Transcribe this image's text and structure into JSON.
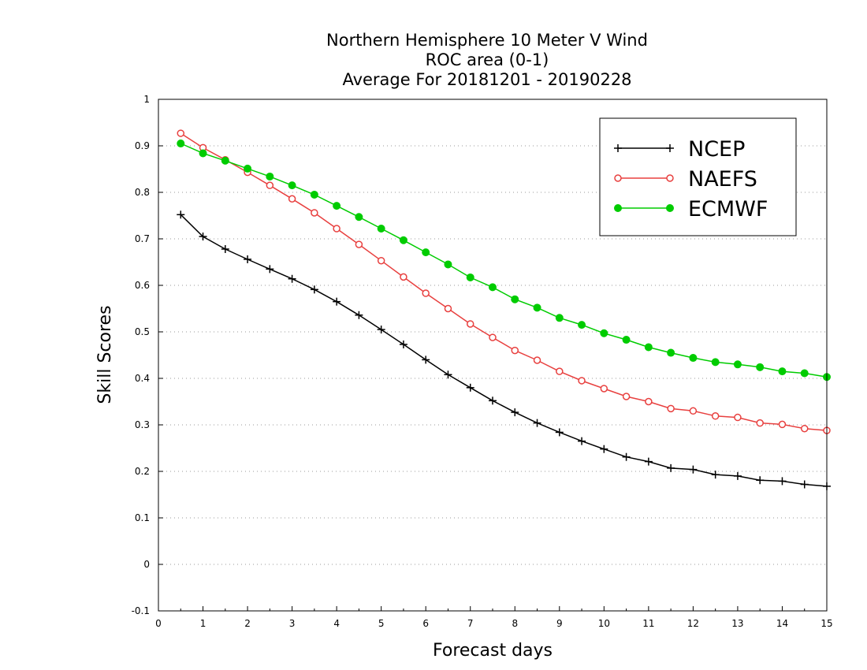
{
  "chart_data": {
    "type": "line",
    "title": [
      "Northern Hemisphere 10 Meter V Wind",
      "ROC area (0-1)",
      "Average For 20181201 - 20190228"
    ],
    "xlabel": "Forecast days",
    "ylabel": "Skill Scores",
    "xlim": [
      0,
      15
    ],
    "ylim": [
      -0.1,
      1
    ],
    "x_ticks": [
      "0",
      "1",
      "2",
      "3",
      "4",
      "5",
      "6",
      "7",
      "8",
      "9",
      "10",
      "11",
      "12",
      "13",
      "14",
      "15"
    ],
    "y_ticks": [
      "-0.1",
      "0",
      "0.1",
      "0.2",
      "0.3",
      "0.4",
      "0.5",
      "0.6",
      "0.7",
      "0.8",
      "0.9",
      "1"
    ],
    "grid": "horizontal dotted",
    "legend_position": "top-right",
    "x": [
      0.5,
      1,
      1.5,
      2,
      2.5,
      3,
      3.5,
      4,
      4.5,
      5,
      5.5,
      6,
      6.5,
      7,
      7.5,
      8,
      8.5,
      9,
      9.5,
      10,
      10.5,
      11,
      11.5,
      12,
      12.5,
      13,
      13.5,
      14,
      14.5,
      15
    ],
    "series": [
      {
        "name": "NCEP",
        "color": "#000000",
        "marker": "plus",
        "values": [
          0.752,
          0.705,
          0.678,
          0.656,
          0.635,
          0.614,
          0.591,
          0.565,
          0.536,
          0.505,
          0.473,
          0.44,
          0.408,
          0.38,
          0.352,
          0.327,
          0.304,
          0.284,
          0.265,
          0.248,
          0.231,
          0.221,
          0.207,
          0.204,
          0.193,
          0.19,
          0.181,
          0.179,
          0.172,
          0.168
        ]
      },
      {
        "name": "NAEFS",
        "color": "#e8403f",
        "marker": "open-circle",
        "values": [
          0.927,
          0.896,
          0.87,
          0.843,
          0.815,
          0.786,
          0.756,
          0.722,
          0.688,
          0.653,
          0.618,
          0.583,
          0.55,
          0.517,
          0.488,
          0.46,
          0.439,
          0.415,
          0.395,
          0.378,
          0.361,
          0.35,
          0.335,
          0.33,
          0.319,
          0.316,
          0.304,
          0.301,
          0.292,
          0.288
        ]
      },
      {
        "name": "ECMWF",
        "color": "#00cc00",
        "marker": "filled-circle",
        "values": [
          0.905,
          0.884,
          0.868,
          0.851,
          0.834,
          0.815,
          0.795,
          0.771,
          0.747,
          0.722,
          0.697,
          0.671,
          0.645,
          0.617,
          0.596,
          0.57,
          0.552,
          0.53,
          0.515,
          0.497,
          0.483,
          0.467,
          0.455,
          0.444,
          0.435,
          0.43,
          0.424,
          0.415,
          0.411,
          0.403
        ]
      }
    ]
  }
}
